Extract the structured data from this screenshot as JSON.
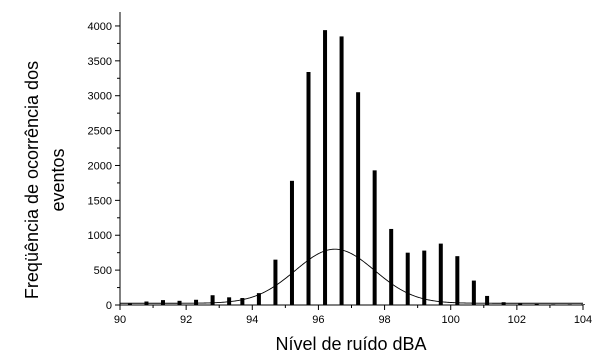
{
  "chart_data": {
    "type": "bar",
    "xlabel": "Nível de ruído dBA",
    "ylabel_lines": [
      "Freqüência de ocorrência dos",
      "eventos"
    ],
    "xlim": [
      90,
      104
    ],
    "ylim": [
      0,
      4200
    ],
    "x_ticks": [
      90,
      92,
      94,
      96,
      98,
      100,
      102,
      104
    ],
    "y_ticks": [
      0,
      500,
      1000,
      1500,
      2000,
      2500,
      3000,
      3500,
      4000
    ],
    "grid": false,
    "bar_color": "#000000",
    "series": [
      {
        "x": [
          90.3,
          90.8,
          91.3,
          91.8,
          92.3,
          92.8,
          93.3,
          93.7,
          94.2,
          94.7,
          95.2,
          95.7,
          96.2,
          96.7,
          97.2,
          97.7,
          98.2,
          98.7,
          99.2,
          99.7,
          100.2,
          100.7,
          101.1,
          101.6,
          102.1,
          102.6,
          103.1,
          103.6,
          104.0
        ],
        "values": [
          20,
          50,
          70,
          60,
          75,
          140,
          110,
          100,
          170,
          650,
          1780,
          3340,
          3940,
          3850,
          3050,
          1930,
          1090,
          750,
          780,
          880,
          700,
          350,
          130,
          40,
          20,
          15,
          10,
          10,
          10
        ]
      }
    ],
    "fit_curve": {
      "type": "gaussian",
      "mean": 96.5,
      "std": 1.2,
      "peak": 800,
      "baseline": 25
    }
  }
}
